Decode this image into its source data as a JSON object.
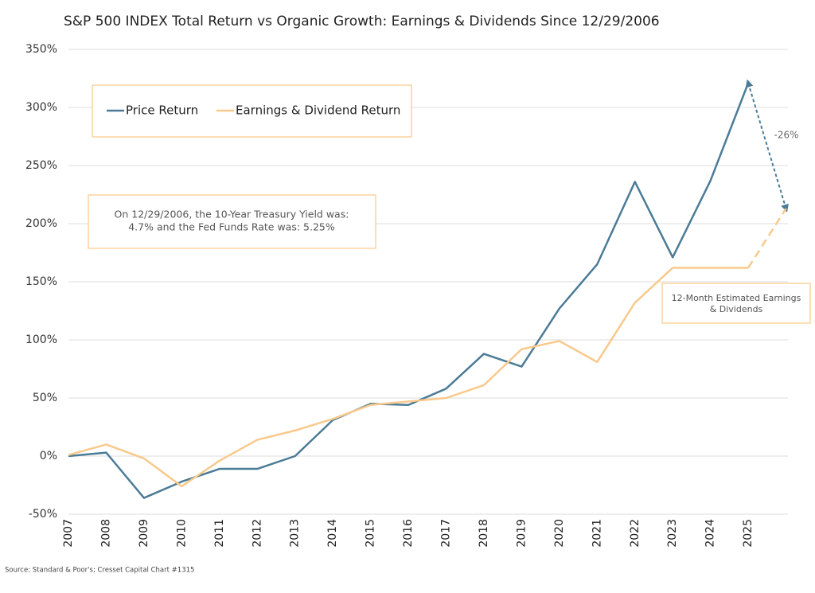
{
  "chart_data": {
    "type": "line",
    "title": "S&P 500 INDEX Total Return vs Organic Growth: Earnings & Dividends Since 12/29/2006",
    "categories": [
      "2007",
      "2008",
      "2009",
      "2010",
      "2011",
      "2012",
      "2013",
      "2014",
      "2015",
      "2016",
      "2017",
      "2018",
      "2019",
      "2020",
      "2021",
      "2022",
      "2023",
      "2024",
      "2025",
      null
    ],
    "series": [
      {
        "name": "Price Return",
        "color": "#4b7b97",
        "values": [
          0,
          3,
          -36,
          -22,
          -11,
          -11,
          0,
          31,
          45,
          44,
          58,
          88,
          77,
          127,
          165,
          236,
          171,
          237,
          321,
          213
        ]
      },
      {
        "name": "Earnings & Dividend Return",
        "color": "#f9c98c",
        "values": [
          1,
          10,
          -2,
          -26,
          -4,
          14,
          22,
          32,
          44,
          47,
          50,
          61,
          92,
          99,
          81,
          132,
          162,
          162,
          162,
          213
        ]
      }
    ],
    "dashed_last_segment": true,
    "ylim": [
      -50,
      350
    ],
    "yticks": [
      {
        "value": -50,
        "label": "-50%"
      },
      {
        "value": 0,
        "label": "0%"
      },
      {
        "value": 50,
        "label": "50%"
      },
      {
        "value": 100,
        "label": "100%"
      },
      {
        "value": 150,
        "label": "150%"
      },
      {
        "value": 200,
        "label": "200%"
      },
      {
        "value": 250,
        "label": "250%"
      },
      {
        "value": 300,
        "label": "300%"
      },
      {
        "value": 350,
        "label": "350%"
      }
    ],
    "grid": true,
    "annotations": {
      "change": "-26%",
      "estimate": [
        "12-Month Estimated Earnings",
        "& Dividends"
      ],
      "note": [
        "On 12/29/2006, the 10-Year Treasury Yield was:",
        "4.7% and the Fed Funds Rate was: 5.25%"
      ]
    },
    "source": "Source: Standard & Poor's; Cresset Capital Chart #1315"
  }
}
